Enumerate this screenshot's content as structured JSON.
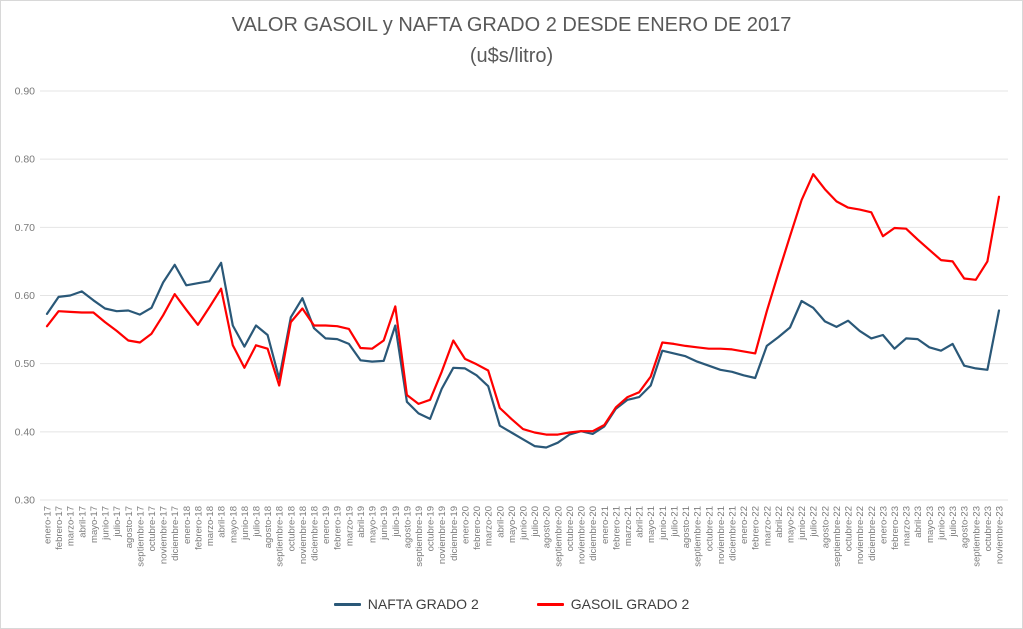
{
  "chart_data": {
    "type": "line",
    "title": "VALOR GASOIL y NAFTA GRADO 2 DESDE ENERO DE 2017",
    "subtitle": "(u$s/litro)",
    "xlabel": "",
    "ylabel": "",
    "ylim": [
      0.3,
      0.9
    ],
    "ytick_step": 0.1,
    "grid": true,
    "legend_position": "bottom",
    "categories": [
      "enero-17",
      "febrero-17",
      "marzo-17",
      "abril-17",
      "mayo-17",
      "junio-17",
      "julio-17",
      "agosto-17",
      "septiembre-17",
      "octubre-17",
      "noviembre-17",
      "diciembre-17",
      "enero-18",
      "febrero-18",
      "marzo-18",
      "abril-18",
      "mayo-18",
      "junio-18",
      "julio-18",
      "agosto-18",
      "septiembre-18",
      "octubre-18",
      "noviembre-18",
      "diciembre-18",
      "enero-19",
      "febrero-19",
      "marzo-19",
      "abril-19",
      "mayo-19",
      "junio-19",
      "julio-19",
      "agosto-19",
      "septiembre-19",
      "octubre-19",
      "noviembre-19",
      "diciembre-19",
      "enero-20",
      "febrero-20",
      "marzo-20",
      "abril-20",
      "mayo-20",
      "junio-20",
      "julio-20",
      "agosto-20",
      "septiembre-20",
      "octubre-20",
      "noviembre-20",
      "diciembre-20",
      "enero-21",
      "febrero-21",
      "marzo-21",
      "abril-21",
      "mayo-21",
      "junio-21",
      "julio-21",
      "agosto-21",
      "septiembre-21",
      "octubre-21",
      "noviembre-21",
      "diciembre-21",
      "enero-22",
      "febrero-22",
      "marzo-22",
      "abril-22",
      "mayo-22",
      "junio-22",
      "julio-22",
      "agosto-22",
      "septiembre-22",
      "octubre-22",
      "noviembre-22",
      "diciembre-22",
      "enero-23",
      "febrero-23",
      "marzo-23",
      "abril-23",
      "mayo-23",
      "junio-23",
      "julio-23",
      "agosto-23",
      "septiembre-23",
      "octubre-23",
      "noviembre-23"
    ],
    "series": [
      {
        "name": "NAFTA GRADO 2",
        "color": "#2A5878",
        "values": [
          0.573,
          0.598,
          0.6,
          0.606,
          0.593,
          0.581,
          0.577,
          0.578,
          0.572,
          0.582,
          0.619,
          0.645,
          0.615,
          0.618,
          0.621,
          0.648,
          0.556,
          0.525,
          0.556,
          0.542,
          0.478,
          0.568,
          0.596,
          0.552,
          0.537,
          0.536,
          0.529,
          0.505,
          0.503,
          0.504,
          0.556,
          0.444,
          0.427,
          0.419,
          0.463,
          0.494,
          0.493,
          0.483,
          0.467,
          0.409,
          0.399,
          0.389,
          0.379,
          0.377,
          0.384,
          0.396,
          0.401,
          0.397,
          0.408,
          0.434,
          0.447,
          0.451,
          0.468,
          0.519,
          0.515,
          0.511,
          0.503,
          0.497,
          0.491,
          0.488,
          0.483,
          0.479,
          0.526,
          0.539,
          0.553,
          0.592,
          0.582,
          0.562,
          0.554,
          0.563,
          0.548,
          0.537,
          0.542,
          0.522,
          0.537,
          0.536,
          0.524,
          0.519,
          0.529,
          0.497,
          0.493,
          0.491,
          0.578
        ]
      },
      {
        "name": "GASOIL GRADO 2",
        "color": "#FF0000",
        "values": [
          0.555,
          0.577,
          0.576,
          0.575,
          0.575,
          0.561,
          0.548,
          0.534,
          0.531,
          0.544,
          0.571,
          0.602,
          0.579,
          0.557,
          0.583,
          0.61,
          0.527,
          0.494,
          0.527,
          0.522,
          0.468,
          0.561,
          0.581,
          0.556,
          0.556,
          0.555,
          0.551,
          0.523,
          0.522,
          0.534,
          0.584,
          0.454,
          0.441,
          0.447,
          0.488,
          0.534,
          0.507,
          0.499,
          0.49,
          0.435,
          0.419,
          0.404,
          0.399,
          0.396,
          0.396,
          0.399,
          0.401,
          0.401,
          0.41,
          0.436,
          0.451,
          0.458,
          0.481,
          0.531,
          0.529,
          0.526,
          0.524,
          0.522,
          0.522,
          0.521,
          0.518,
          0.515,
          0.577,
          0.633,
          0.687,
          0.74,
          0.778,
          0.756,
          0.738,
          0.729,
          0.726,
          0.722,
          0.687,
          0.699,
          0.698,
          0.682,
          0.667,
          0.652,
          0.65,
          0.625,
          0.623,
          0.65,
          0.745
        ]
      }
    ]
  },
  "colors": {
    "background": "#FFFFFF",
    "frame_border": "#D8D8D8",
    "gridline": "#E4E4E4",
    "axis_text": "#7A7A7A",
    "title_text": "#595959",
    "legend_text": "#3F3F3F"
  }
}
